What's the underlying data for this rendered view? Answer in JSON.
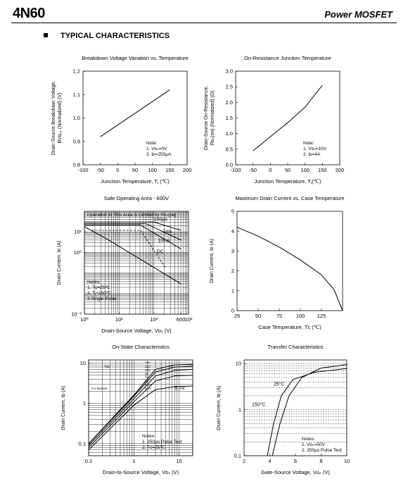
{
  "header": {
    "part_number": "4N60",
    "doc_title": "Power MOSFET"
  },
  "section": {
    "title": "TYPICAL CHARACTERISTICS"
  },
  "chart_data": [
    {
      "id": "bvdss",
      "type": "line",
      "title": "Breakdown Voltage Variation vs.  Temperature",
      "xlabel": "Junction Temperature, Tⱼ (℃)",
      "ylabel": [
        "Drain-Source Breakdown Voltage,",
        "BVᴅₛₛ (Normalized) (V)"
      ],
      "xlim": [
        -100,
        200
      ],
      "ylim": [
        0.8,
        1.2
      ],
      "xticks": [
        -100,
        -50,
        0,
        50,
        100,
        150,
        200
      ],
      "yticks": [
        0.8,
        0.9,
        1.0,
        1.1,
        1.2
      ],
      "series": [
        {
          "x": [
            -50,
            150
          ],
          "y": [
            0.92,
            1.12
          ]
        }
      ],
      "notes": [
        "Note:",
        "1. Vɢₛ=0V",
        "2. Iᴅ=250μA"
      ]
    },
    {
      "id": "rdson",
      "type": "line",
      "title": "On-Resistance Junction Temperature",
      "xlabel": "Junction Temperature, Tⱼ(℃)",
      "ylabel": [
        "Drain-Source On-Resistance,",
        "Rᴅₛ(ᴏɴ) (Normalized) (Ω)"
      ],
      "xlim": [
        -100,
        200
      ],
      "ylim": [
        0,
        3.0
      ],
      "xticks": [
        -100,
        -50,
        0,
        50,
        100,
        150,
        200
      ],
      "yticks": [
        0.0,
        0.5,
        1.0,
        1.5,
        2.0,
        2.5,
        3.0
      ],
      "series": [
        {
          "x": [
            -50,
            0,
            50,
            100,
            150
          ],
          "y": [
            0.45,
            0.9,
            1.35,
            1.85,
            2.55
          ]
        }
      ],
      "notes": [
        "Note:",
        "1. Vɢₛ=10V",
        "2. Iᴅ=4A"
      ]
    },
    {
      "id": "soa",
      "type": "line",
      "scale": "log-log",
      "title": "Safe Operating Area - 600V",
      "xlabel": "Drain-Source Voltage, Vᴅₛ (V)",
      "ylabel": "Drain Current, Iᴅ (A)",
      "xlim": [
        1,
        1000
      ],
      "ylim": [
        0.001,
        100
      ],
      "xtick_labels": [
        "10⁰",
        "10¹",
        "10²",
        "600",
        "10³"
      ],
      "xtick_values": [
        1,
        10,
        100,
        600,
        1000
      ],
      "ytick_labels": [
        "10⁻³",
        "10⁰",
        "10¹"
      ],
      "ytick_values": [
        0.001,
        1,
        10
      ],
      "region_label": "Operation in This Area is Limited by Rᴅₛ(ᴏɴ)",
      "series": [
        {
          "name": "100μs",
          "x": [
            1,
            100,
            600
          ],
          "y": [
            30,
            30,
            12
          ]
        },
        {
          "name": "1ms",
          "x": [
            1,
            60,
            600
          ],
          "y": [
            25,
            25,
            4
          ]
        },
        {
          "name": "10ms",
          "x": [
            1,
            40,
            600
          ],
          "y": [
            22,
            22,
            1.5
          ]
        },
        {
          "name": "DC",
          "x": [
            1,
            5,
            600
          ],
          "y": [
            18,
            4,
            0.03
          ]
        }
      ],
      "notes": [
        "Notes:",
        "1. Tᴄ=25℃",
        "2. Tⱼ=150℃",
        "3.Single Pulse"
      ]
    },
    {
      "id": "idmax",
      "type": "line",
      "title": "Maximum Drain Current vs. Case Temperature",
      "xlabel": "Case Temperature, Tᴄ (℃)",
      "ylabel": "Drain Current, Iᴅ (A)",
      "xlim": [
        25,
        150
      ],
      "ylim": [
        0,
        5
      ],
      "xticks": [
        25,
        50,
        75,
        100,
        125
      ],
      "yticks": [
        0,
        1,
        2,
        3,
        4,
        5
      ],
      "series": [
        {
          "x": [
            25,
            50,
            75,
            100,
            125,
            140,
            150
          ],
          "y": [
            4.2,
            3.75,
            3.2,
            2.55,
            1.8,
            1.05,
            0
          ]
        }
      ]
    },
    {
      "id": "onstate",
      "type": "line",
      "scale": "log-log",
      "title": "On-State Characteristics",
      "xlabel": "Drain-to-Source Voltage, Vᴅₛ (V)",
      "ylabel": "Drain Current, Iᴅ (A)",
      "xlim": [
        0.1,
        20
      ],
      "ylim": [
        0.05,
        12
      ],
      "xticks": [
        0.1,
        1,
        10
      ],
      "yticks": [
        0.1,
        1,
        10
      ],
      "legend_header": "Vɢₛ",
      "legend_top": "Top:",
      "legend_bottom": "5 V  Bottom:",
      "legend_values": [
        "15V",
        "10V",
        "8V",
        "7V",
        "6V",
        "5.5V",
        "5.0V"
      ],
      "curve_label": "5.0V",
      "series": [
        {
          "x": [
            0.1,
            1,
            3,
            8,
            20
          ],
          "y": [
            0.07,
            0.9,
            2.2,
            2.6,
            2.7
          ]
        },
        {
          "x": [
            0.1,
            1,
            3,
            8,
            20
          ],
          "y": [
            0.08,
            1.1,
            3.6,
            4.8,
            5.0
          ]
        },
        {
          "x": [
            0.1,
            1,
            3,
            8,
            20
          ],
          "y": [
            0.09,
            1.3,
            4.8,
            6.6,
            7.0
          ]
        },
        {
          "x": [
            0.1,
            1,
            3,
            8,
            20
          ],
          "y": [
            0.1,
            1.5,
            6.0,
            8.0,
            8.4
          ]
        },
        {
          "x": [
            0.1,
            1,
            3,
            8,
            20
          ],
          "y": [
            0.1,
            1.6,
            7.0,
            9.0,
            9.4
          ]
        }
      ],
      "notes": [
        "Notes:",
        "1. 250μs Pulse Test",
        "2. Tᴄ=25℃"
      ]
    },
    {
      "id": "transfer",
      "type": "line",
      "scale": "log-y",
      "title": "Transfer Characteristics",
      "xlabel": "Gate-Source Voltage, Vɢₛ (V)",
      "ylabel": "Drain Current, Iᴅ (A)",
      "xlim": [
        2,
        10
      ],
      "ylim": [
        0.1,
        12
      ],
      "xticks": [
        2,
        4,
        6,
        8,
        10
      ],
      "yticks": [
        0.1,
        1,
        10
      ],
      "series": [
        {
          "name": "25°C",
          "x": [
            4.2,
            4.8,
            5.5,
            6.5,
            8,
            10
          ],
          "y": [
            0.1,
            0.5,
            2,
            5,
            8,
            9.5
          ]
        },
        {
          "name": "150°C",
          "x": [
            3.8,
            4.3,
            4.9,
            5.8,
            7.5,
            10
          ],
          "y": [
            0.1,
            0.5,
            2,
            4.5,
            6.5,
            7.8
          ]
        }
      ],
      "notes": [
        "Notes:",
        "1. Vᴅₛ=50V",
        "2. 250μs Pulse Test"
      ]
    }
  ]
}
